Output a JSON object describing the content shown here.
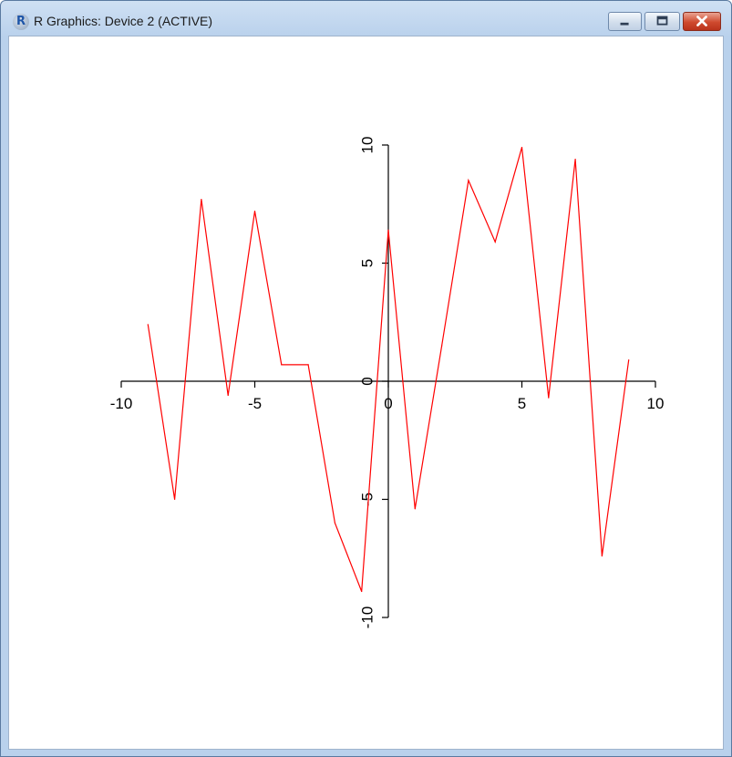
{
  "window": {
    "title": "R Graphics: Device 2 (ACTIVE)",
    "app_icon": "r-logo-icon",
    "controls": [
      "minimize-icon",
      "maximize-icon",
      "close-icon"
    ]
  },
  "chart_data": {
    "type": "line",
    "title": "",
    "xlabel": "",
    "ylabel": "",
    "xlim": [
      -10,
      10
    ],
    "ylim": [
      -10,
      10
    ],
    "x_ticks": [
      -10,
      -5,
      0,
      5,
      10
    ],
    "y_ticks": [
      -10,
      -5,
      0,
      5,
      10
    ],
    "x_tick_labels": [
      "-10",
      "-5",
      "0",
      "5",
      "10"
    ],
    "y_tick_labels": [
      "-10",
      "-5",
      "0",
      "5",
      "10"
    ],
    "grid": false,
    "legend": "none",
    "series": [
      {
        "color": "#ff0000",
        "x": [
          -9,
          -8,
          -7,
          -6,
          -5,
          -4,
          -3,
          -2,
          -1,
          0,
          1,
          2,
          3,
          4,
          5,
          6,
          7,
          8,
          9
        ],
        "values": [
          2.4,
          -5.0,
          7.7,
          -0.6,
          7.2,
          0.7,
          0.7,
          -6.0,
          -8.9,
          6.4,
          -5.4,
          1.5,
          8.5,
          5.9,
          9.9,
          -0.7,
          9.4,
          -7.4,
          0.9
        ]
      }
    ]
  }
}
